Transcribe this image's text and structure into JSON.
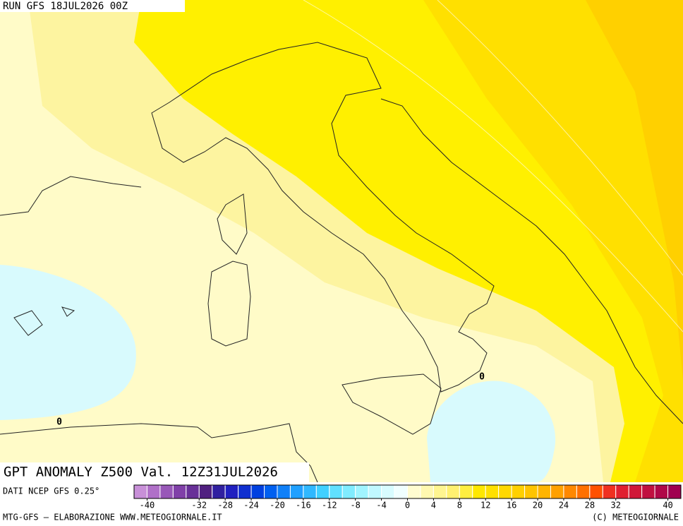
{
  "header": {
    "run": "RUN GFS 18JUL2026 00Z"
  },
  "map": {
    "title": "GPT ANOMALY Z500 Val. 12Z31JUL2026",
    "source": "DATI NCEP GFS 0.25°",
    "contour_labels": [
      "0",
      "0"
    ]
  },
  "colorbar": {
    "lim": [
      -42,
      42
    ],
    "colors": [
      "#c890d8",
      "#b070c8",
      "#9858b8",
      "#8040a8",
      "#683098",
      "#502080",
      "#3020a0",
      "#2020c0",
      "#1030d0",
      "#0040e0",
      "#0060f0",
      "#1080f8",
      "#20a0ff",
      "#30b8ff",
      "#40d0ff",
      "#60e0ff",
      "#80ecff",
      "#a0f4ff",
      "#c0f8ff",
      "#d8fcff",
      "#f0ffff",
      "#fffcd0",
      "#fff8b0",
      "#fff590",
      "#fff070",
      "#ffee40",
      "#ffe800",
      "#ffe000",
      "#ffd800",
      "#ffd000",
      "#ffc400",
      "#ffb400",
      "#ffa000",
      "#ff8800",
      "#ff7000",
      "#ff5000",
      "#f03020",
      "#e02030",
      "#d01838",
      "#c01040",
      "#b00848",
      "#a00050"
    ],
    "ticks": [
      -40,
      -32,
      -28,
      -24,
      -20,
      -16,
      -12,
      -8,
      -4,
      0,
      4,
      8,
      12,
      16,
      20,
      24,
      28,
      32,
      40
    ]
  },
  "footer": {
    "left": "MTG-GFS — ELABORAZIONE WWW.METEOGIORNALE.IT",
    "right": "(C) METEOGIORNALE"
  }
}
